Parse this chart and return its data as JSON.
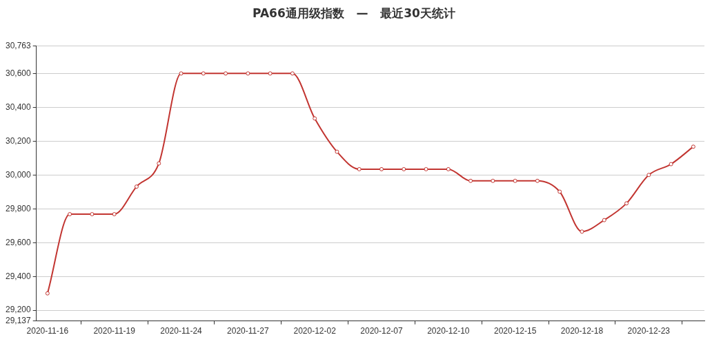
{
  "chart_data": {
    "type": "line",
    "title": "PA66通用级指数   —   最近30天统计",
    "categories": [
      "2020-11-16",
      null,
      null,
      "2020-11-19",
      null,
      null,
      "2020-11-24",
      null,
      null,
      "2020-11-27",
      null,
      null,
      "2020-12-02",
      null,
      null,
      "2020-12-07",
      null,
      null,
      "2020-12-10",
      null,
      null,
      "2020-12-15",
      null,
      null,
      "2020-12-18",
      null,
      null,
      "2020-12-23",
      null,
      null
    ],
    "series": [
      {
        "color": "#c23531",
        "values": [
          29300,
          29768,
          29768,
          29768,
          29931,
          30068,
          30600,
          30600,
          30600,
          30600,
          30600,
          30600,
          30334,
          30137,
          30034,
          30034,
          30034,
          30034,
          30034,
          29965,
          29965,
          29965,
          29965,
          29901,
          29665,
          29733,
          29832,
          30000,
          30064,
          30167
        ]
      }
    ],
    "ylim": [
      29137,
      30763
    ],
    "yticks": [
      {
        "value": 29137,
        "label": "29,137"
      },
      {
        "value": 29200,
        "label": "29,200"
      },
      {
        "value": 29400,
        "label": "29,400"
      },
      {
        "value": 29600,
        "label": "29,600"
      },
      {
        "value": 29800,
        "label": "29,800"
      },
      {
        "value": 30000,
        "label": "30,000"
      },
      {
        "value": 30200,
        "label": "30,200"
      },
      {
        "value": 30400,
        "label": "30,400"
      },
      {
        "value": 30600,
        "label": "30,600"
      },
      {
        "value": 30763,
        "label": "30,763"
      }
    ],
    "grid": "y",
    "legend": false,
    "marker": "circle",
    "line_style": "solid"
  }
}
